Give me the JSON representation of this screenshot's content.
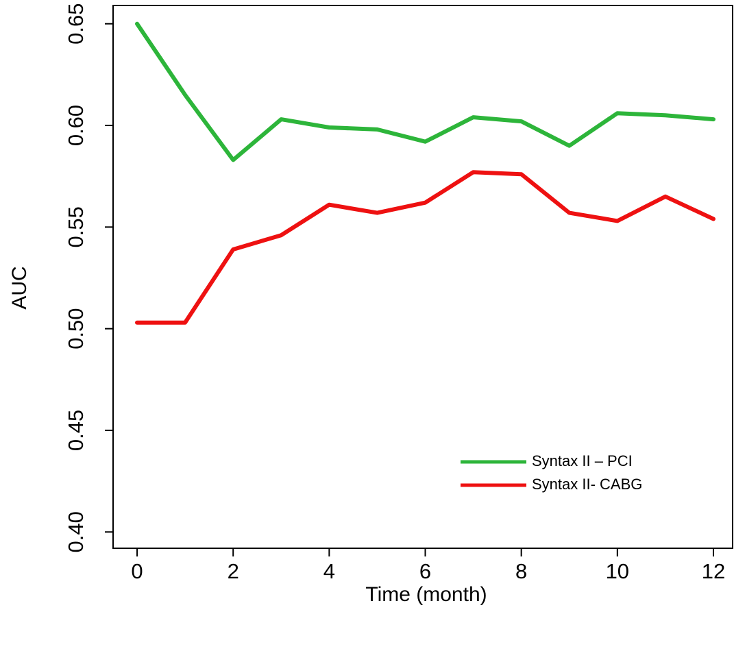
{
  "chart_data": {
    "type": "line",
    "xlabel": "Time (month)",
    "ylabel": "AUC",
    "x": [
      0,
      1,
      2,
      3,
      4,
      5,
      6,
      7,
      8,
      9,
      10,
      11,
      12
    ],
    "xlim": [
      -0.5,
      12.4
    ],
    "ylim": [
      0.392,
      0.659
    ],
    "xticks": [
      "0",
      "2",
      "4",
      "6",
      "8",
      "10",
      "12"
    ],
    "yticks": [
      "0.40",
      "0.45",
      "0.50",
      "0.55",
      "0.60",
      "0.65"
    ],
    "grid": false,
    "legend_position": "bottom-right",
    "series": [
      {
        "name": "Syntax II – PCI",
        "color": "#2db53a",
        "values": [
          0.65,
          0.615,
          0.583,
          0.603,
          0.599,
          0.598,
          0.592,
          0.604,
          0.602,
          0.59,
          0.606,
          0.605,
          0.603
        ]
      },
      {
        "name": "Syntax II- CABG",
        "color": "#ee1111",
        "values": [
          0.503,
          0.503,
          0.539,
          0.546,
          0.561,
          0.557,
          0.562,
          0.577,
          0.576,
          0.557,
          0.553,
          0.565,
          0.554
        ]
      }
    ]
  }
}
